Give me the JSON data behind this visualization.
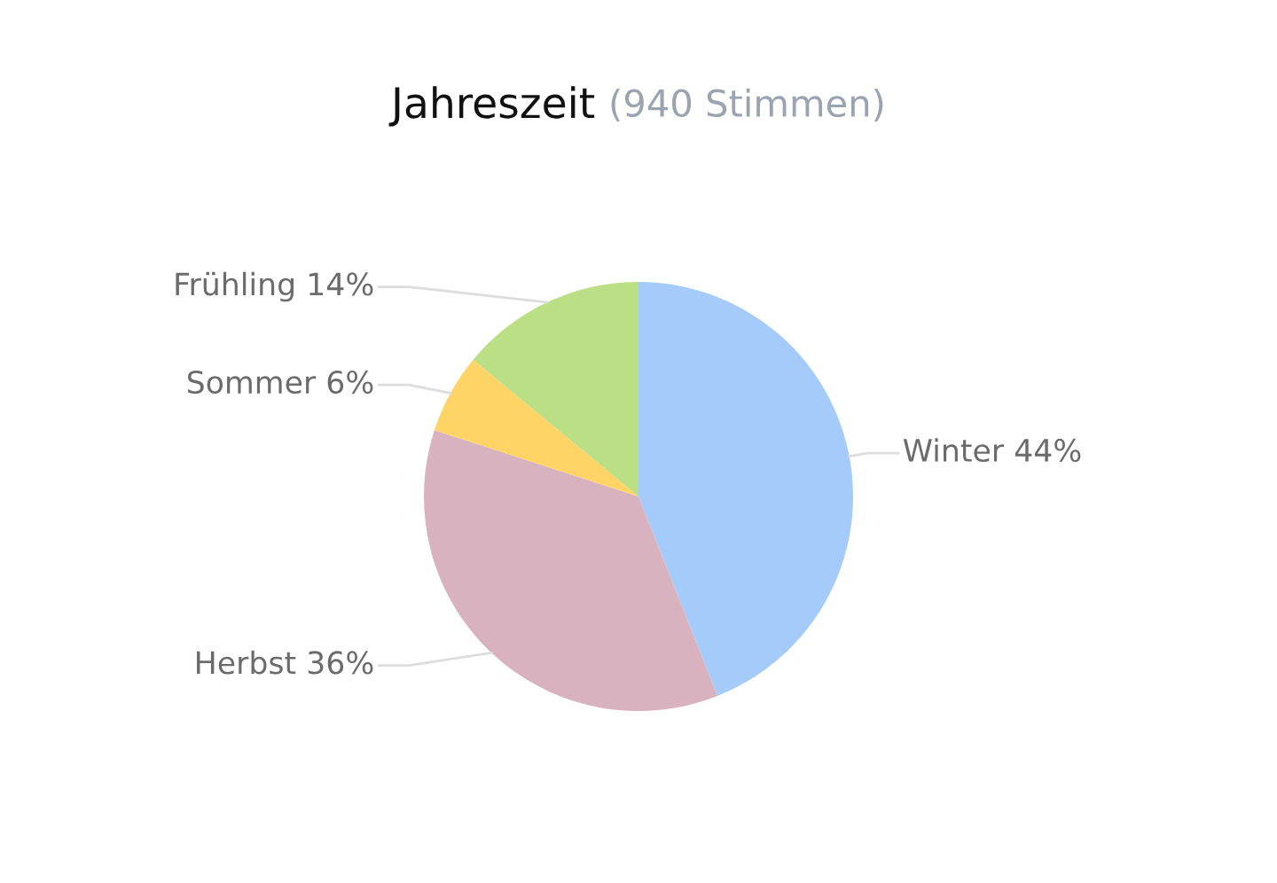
{
  "chart_data": {
    "type": "pie",
    "title": "Jahreszeit",
    "subtitle": "(940 Stimmen)",
    "categories": [
      "Winter",
      "Herbst",
      "Sommer",
      "Frühling"
    ],
    "values": [
      44,
      36,
      6,
      14
    ],
    "value_labels": [
      "44%",
      "36%",
      "6%",
      "14%"
    ],
    "colors": [
      "#a4cbfa",
      "#d8b2be",
      "#fed466",
      "#badf85"
    ]
  }
}
